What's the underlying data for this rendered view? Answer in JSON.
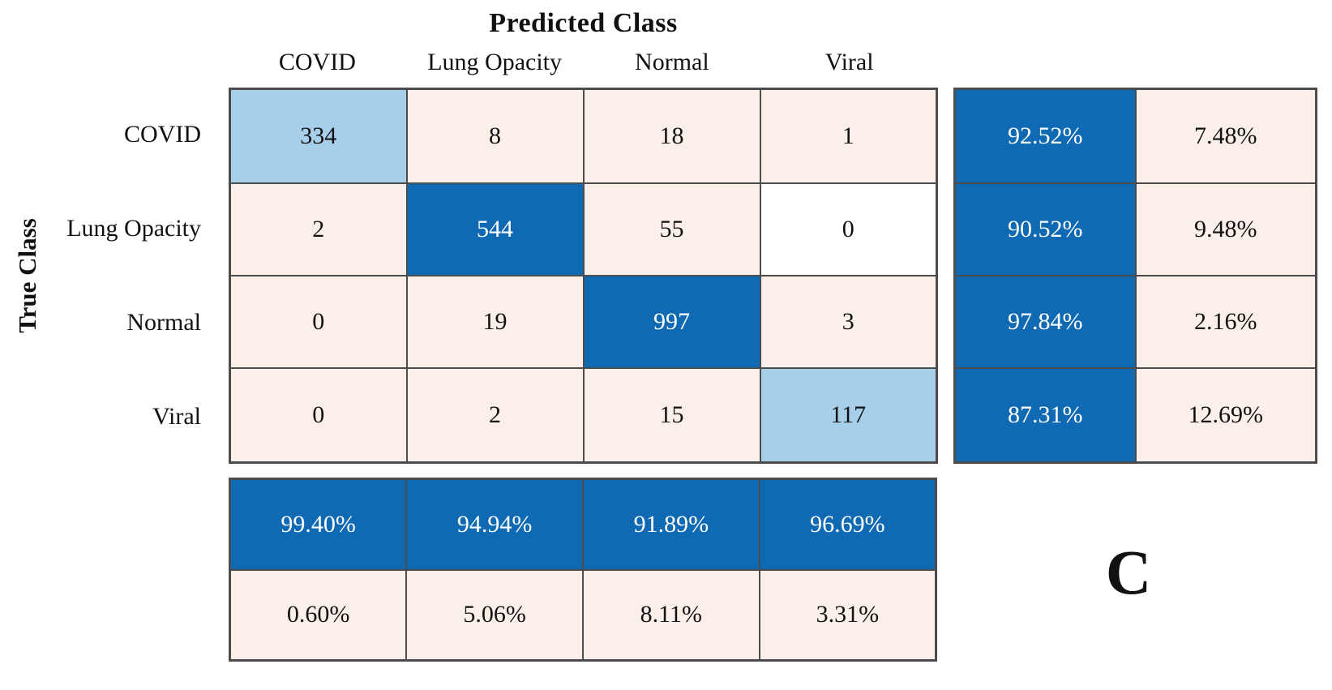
{
  "header": {
    "title": "Predicted Class"
  },
  "axis": {
    "y_label": "True Class"
  },
  "panel_label": "C",
  "colors": {
    "diagonal_blue": "#0f6ab3",
    "partial_diagonal_light_blue": "#a8cfe9",
    "off_diagonal_cream": "#faf0e9",
    "zero_cell_white": "#ffffff",
    "grid_border": "#4c4c4c",
    "dark_cell_text": "#ffffff",
    "light_cell_text": "#111111"
  },
  "chart_data": {
    "type": "heatmap",
    "subtype": "confusion-matrix",
    "title": "Predicted Class",
    "xlabel": "Predicted Class",
    "ylabel": "True Class",
    "classes": [
      "COVID",
      "Lung Opacity",
      "Normal",
      "Viral"
    ],
    "matrix_values": [
      [
        "334",
        "8",
        "18",
        "1"
      ],
      [
        "2",
        "544",
        "55",
        "0"
      ],
      [
        "0",
        "19",
        "997",
        "3"
      ],
      [
        "0",
        "2",
        "15",
        "117"
      ]
    ],
    "matrix_styles": [
      [
        "light",
        "cream",
        "cream",
        "cream"
      ],
      [
        "cream",
        "dark",
        "cream",
        "white"
      ],
      [
        "cream",
        "cream",
        "dark",
        "cream"
      ],
      [
        "cream",
        "cream",
        "cream",
        "light"
      ]
    ],
    "row_summary_values": [
      [
        "92.52%",
        "7.48%"
      ],
      [
        "90.52%",
        "9.48%"
      ],
      [
        "97.84%",
        "2.16%"
      ],
      [
        "87.31%",
        "12.69%"
      ]
    ],
    "row_summary_styles": [
      [
        "dark",
        "cream"
      ],
      [
        "dark",
        "cream"
      ],
      [
        "dark",
        "cream"
      ],
      [
        "dark",
        "cream"
      ]
    ],
    "col_summary_values": [
      [
        "99.40%",
        "94.94%",
        "91.89%",
        "96.69%"
      ],
      [
        "0.60%",
        "5.06%",
        "8.11%",
        "3.31%"
      ]
    ],
    "col_summary_styles": [
      [
        "dark",
        "dark",
        "dark",
        "dark"
      ],
      [
        "cream",
        "cream",
        "cream",
        "cream"
      ]
    ],
    "legend_position": "none",
    "grid": true
  }
}
